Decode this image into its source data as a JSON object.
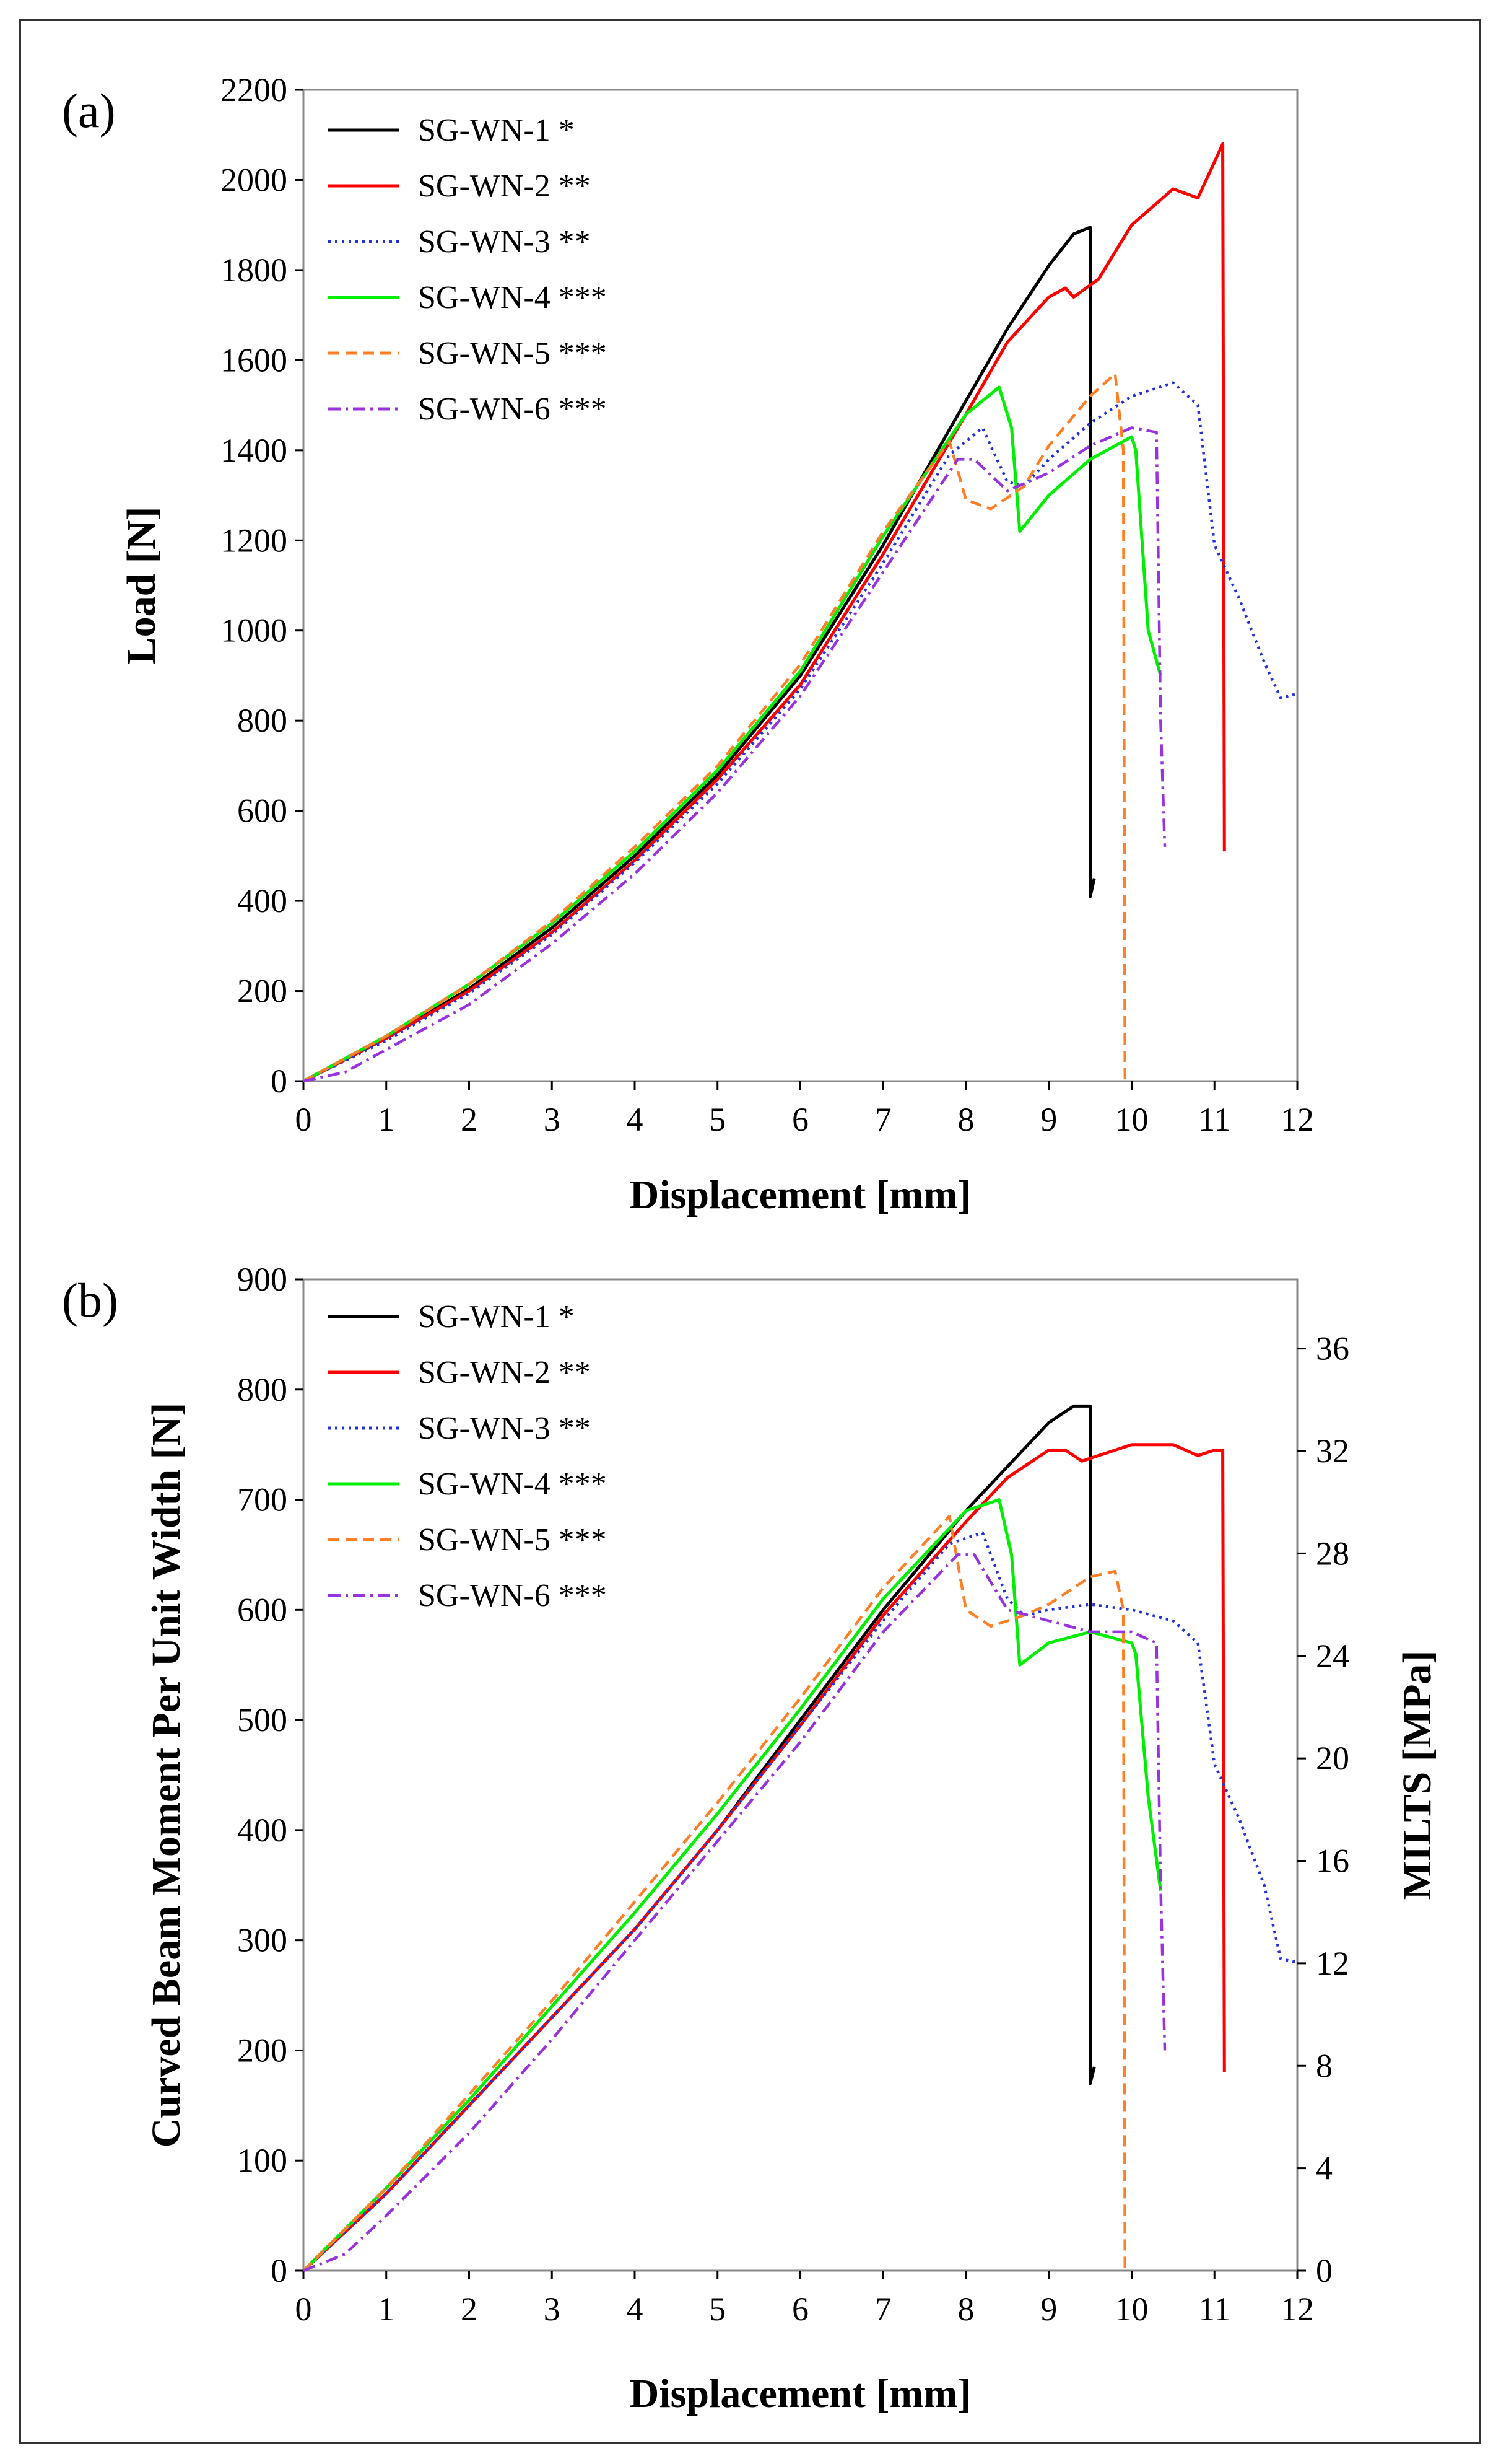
{
  "chart_data": [
    {
      "type": "line",
      "panel_label": "(a)",
      "xlabel": "Displacement [mm]",
      "ylabel": "Load [N]",
      "xlim": [
        0,
        12
      ],
      "ylim": [
        0,
        2200
      ],
      "x_ticks": [
        "0",
        "1",
        "2",
        "3",
        "4",
        "5",
        "6",
        "7",
        "8",
        "9",
        "10",
        "11",
        "12"
      ],
      "y_ticks": [
        "0",
        "200",
        "400",
        "600",
        "800",
        "1000",
        "1200",
        "1400",
        "1600",
        "1800",
        "2000",
        "2200"
      ],
      "grid": false,
      "legend_position": "top-left",
      "series": [
        {
          "name": "SG-WN-1 *",
          "color": "#000000",
          "dash": "solid",
          "x": [
            0,
            1,
            2,
            3,
            4,
            5,
            6,
            7,
            8,
            8.5,
            9,
            9.3,
            9.5,
            9.5,
            9.55
          ],
          "y": [
            0,
            95,
            205,
            340,
            500,
            680,
            900,
            1190,
            1510,
            1670,
            1810,
            1880,
            1895,
            410,
            450
          ]
        },
        {
          "name": "SG-WN-2 **",
          "color": "#ff0000",
          "dash": "solid",
          "x": [
            0,
            1,
            2,
            3,
            4,
            5,
            6,
            7,
            8,
            8.5,
            9,
            9.2,
            9.3,
            9.6,
            10,
            10.5,
            10.8,
            11,
            11.1,
            11.12
          ],
          "y": [
            0,
            95,
            200,
            330,
            490,
            670,
            880,
            1170,
            1480,
            1640,
            1740,
            1760,
            1740,
            1780,
            1900,
            1980,
            1960,
            2040,
            2080,
            510
          ]
        },
        {
          "name": "SG-WN-3 **",
          "color": "#2233dd",
          "dash": "dotted",
          "x": [
            0,
            1,
            2,
            3,
            4,
            5,
            6,
            7,
            7.8,
            8.2,
            8.5,
            8.7,
            9,
            9.5,
            10,
            10.5,
            10.8,
            11,
            11.3,
            11.6,
            11.8,
            12
          ],
          "y": [
            0,
            90,
            195,
            325,
            485,
            660,
            870,
            1150,
            1390,
            1450,
            1330,
            1320,
            1380,
            1460,
            1520,
            1550,
            1500,
            1190,
            1070,
            930,
            850,
            860
          ]
        },
        {
          "name": "SG-WN-4 ***",
          "color": "#00ee00",
          "dash": "solid",
          "x": [
            0,
            1,
            2,
            3,
            4,
            5,
            6,
            7,
            8,
            8.4,
            8.55,
            8.65,
            9,
            9.5,
            10,
            10.05,
            10.2,
            10.35
          ],
          "y": [
            0,
            100,
            215,
            350,
            510,
            690,
            910,
            1210,
            1480,
            1540,
            1450,
            1220,
            1300,
            1380,
            1430,
            1400,
            1000,
            900
          ]
        },
        {
          "name": "SG-WN-5 ***",
          "color": "#ff7f27",
          "dash": "dashed",
          "x": [
            0,
            1,
            2,
            3,
            4,
            5,
            6,
            7,
            7.8,
            8,
            8.3,
            8.7,
            9,
            9.5,
            9.8,
            9.9,
            9.92
          ],
          "y": [
            0,
            100,
            215,
            355,
            520,
            700,
            925,
            1220,
            1420,
            1290,
            1270,
            1320,
            1410,
            1520,
            1570,
            1400,
            0
          ]
        },
        {
          "name": "SG-WN-6 ***",
          "color": "#9933dd",
          "dash": "dashdot",
          "x": [
            0,
            0.5,
            1,
            2,
            3,
            4,
            5,
            6,
            7,
            7.9,
            8.1,
            8.5,
            9,
            9.5,
            10,
            10.3,
            10.35,
            10.4
          ],
          "y": [
            0,
            20,
            70,
            170,
            305,
            460,
            640,
            855,
            1130,
            1380,
            1380,
            1310,
            1350,
            1410,
            1450,
            1440,
            800,
            520
          ]
        }
      ]
    },
    {
      "type": "line",
      "panel_label": "(b)",
      "xlabel": "Displacement [mm]",
      "ylabel": "Curved Beam Moment Per Unit Width [N]",
      "ylabel_right": "MILTS [MPa]",
      "xlim": [
        0,
        12
      ],
      "ylim": [
        0,
        900
      ],
      "ylim_right": [
        0,
        38.7
      ],
      "x_ticks": [
        "0",
        "1",
        "2",
        "3",
        "4",
        "5",
        "6",
        "7",
        "8",
        "9",
        "10",
        "11",
        "12"
      ],
      "y_ticks": [
        "0",
        "100",
        "200",
        "300",
        "400",
        "500",
        "600",
        "700",
        "800",
        "900"
      ],
      "y_ticks_right": [
        "0",
        "4",
        "8",
        "12",
        "16",
        "20",
        "24",
        "28",
        "32",
        "36"
      ],
      "grid": false,
      "legend_position": "top-left",
      "series": [
        {
          "name": "SG-WN-1 *",
          "color": "#000000",
          "dash": "solid",
          "x": [
            0,
            1,
            2,
            3,
            4,
            5,
            6,
            7,
            8,
            8.5,
            9,
            9.3,
            9.5,
            9.5,
            9.55
          ],
          "y": [
            0,
            70,
            150,
            230,
            310,
            400,
            500,
            600,
            690,
            730,
            770,
            785,
            785,
            170,
            185
          ]
        },
        {
          "name": "SG-WN-2 **",
          "color": "#ff0000",
          "dash": "solid",
          "x": [
            0,
            1,
            2,
            3,
            4,
            5,
            6,
            7,
            8,
            8.5,
            9,
            9.2,
            9.4,
            9.6,
            10,
            10.5,
            10.8,
            11,
            11.1,
            11.12
          ],
          "y": [
            0,
            70,
            150,
            230,
            310,
            400,
            495,
            595,
            680,
            720,
            745,
            745,
            735,
            740,
            750,
            750,
            740,
            745,
            745,
            180
          ]
        },
        {
          "name": "SG-WN-3 **",
          "color": "#2233dd",
          "dash": "dotted",
          "x": [
            0,
            1,
            2,
            3,
            4,
            5,
            6,
            7,
            7.8,
            8.2,
            8.5,
            8.7,
            9,
            9.5,
            10,
            10.5,
            10.8,
            11,
            11.3,
            11.6,
            11.8,
            12
          ],
          "y": [
            0,
            70,
            150,
            230,
            310,
            400,
            495,
            590,
            660,
            670,
            610,
            595,
            600,
            605,
            600,
            590,
            570,
            460,
            410,
            350,
            283,
            280
          ]
        },
        {
          "name": "SG-WN-4 ***",
          "color": "#00ee00",
          "dash": "solid",
          "x": [
            0,
            1,
            2,
            3,
            4,
            5,
            6,
            7,
            8,
            8.4,
            8.55,
            8.65,
            9,
            9.5,
            10,
            10.05,
            10.2,
            10.35
          ],
          "y": [
            0,
            75,
            155,
            240,
            325,
            415,
            510,
            610,
            690,
            700,
            650,
            550,
            570,
            580,
            570,
            560,
            430,
            345
          ]
        },
        {
          "name": "SG-WN-5 ***",
          "color": "#ff7f27",
          "dash": "dashed",
          "x": [
            0,
            1,
            2,
            3,
            4,
            5,
            6,
            7,
            7.8,
            8,
            8.3,
            8.7,
            9,
            9.5,
            9.8,
            9.9,
            9.92
          ],
          "y": [
            0,
            75,
            160,
            245,
            335,
            425,
            520,
            620,
            685,
            600,
            585,
            595,
            605,
            630,
            635,
            600,
            0
          ]
        },
        {
          "name": "SG-WN-6 ***",
          "color": "#9933dd",
          "dash": "dashdot",
          "x": [
            0,
            0.5,
            1,
            2,
            3,
            4,
            5,
            6,
            7,
            7.9,
            8.1,
            8.5,
            9,
            9.5,
            10,
            10.3,
            10.35,
            10.4
          ],
          "y": [
            0,
            15,
            50,
            125,
            210,
            300,
            390,
            480,
            580,
            650,
            650,
            600,
            590,
            580,
            580,
            570,
            350,
            200
          ]
        }
      ]
    }
  ]
}
